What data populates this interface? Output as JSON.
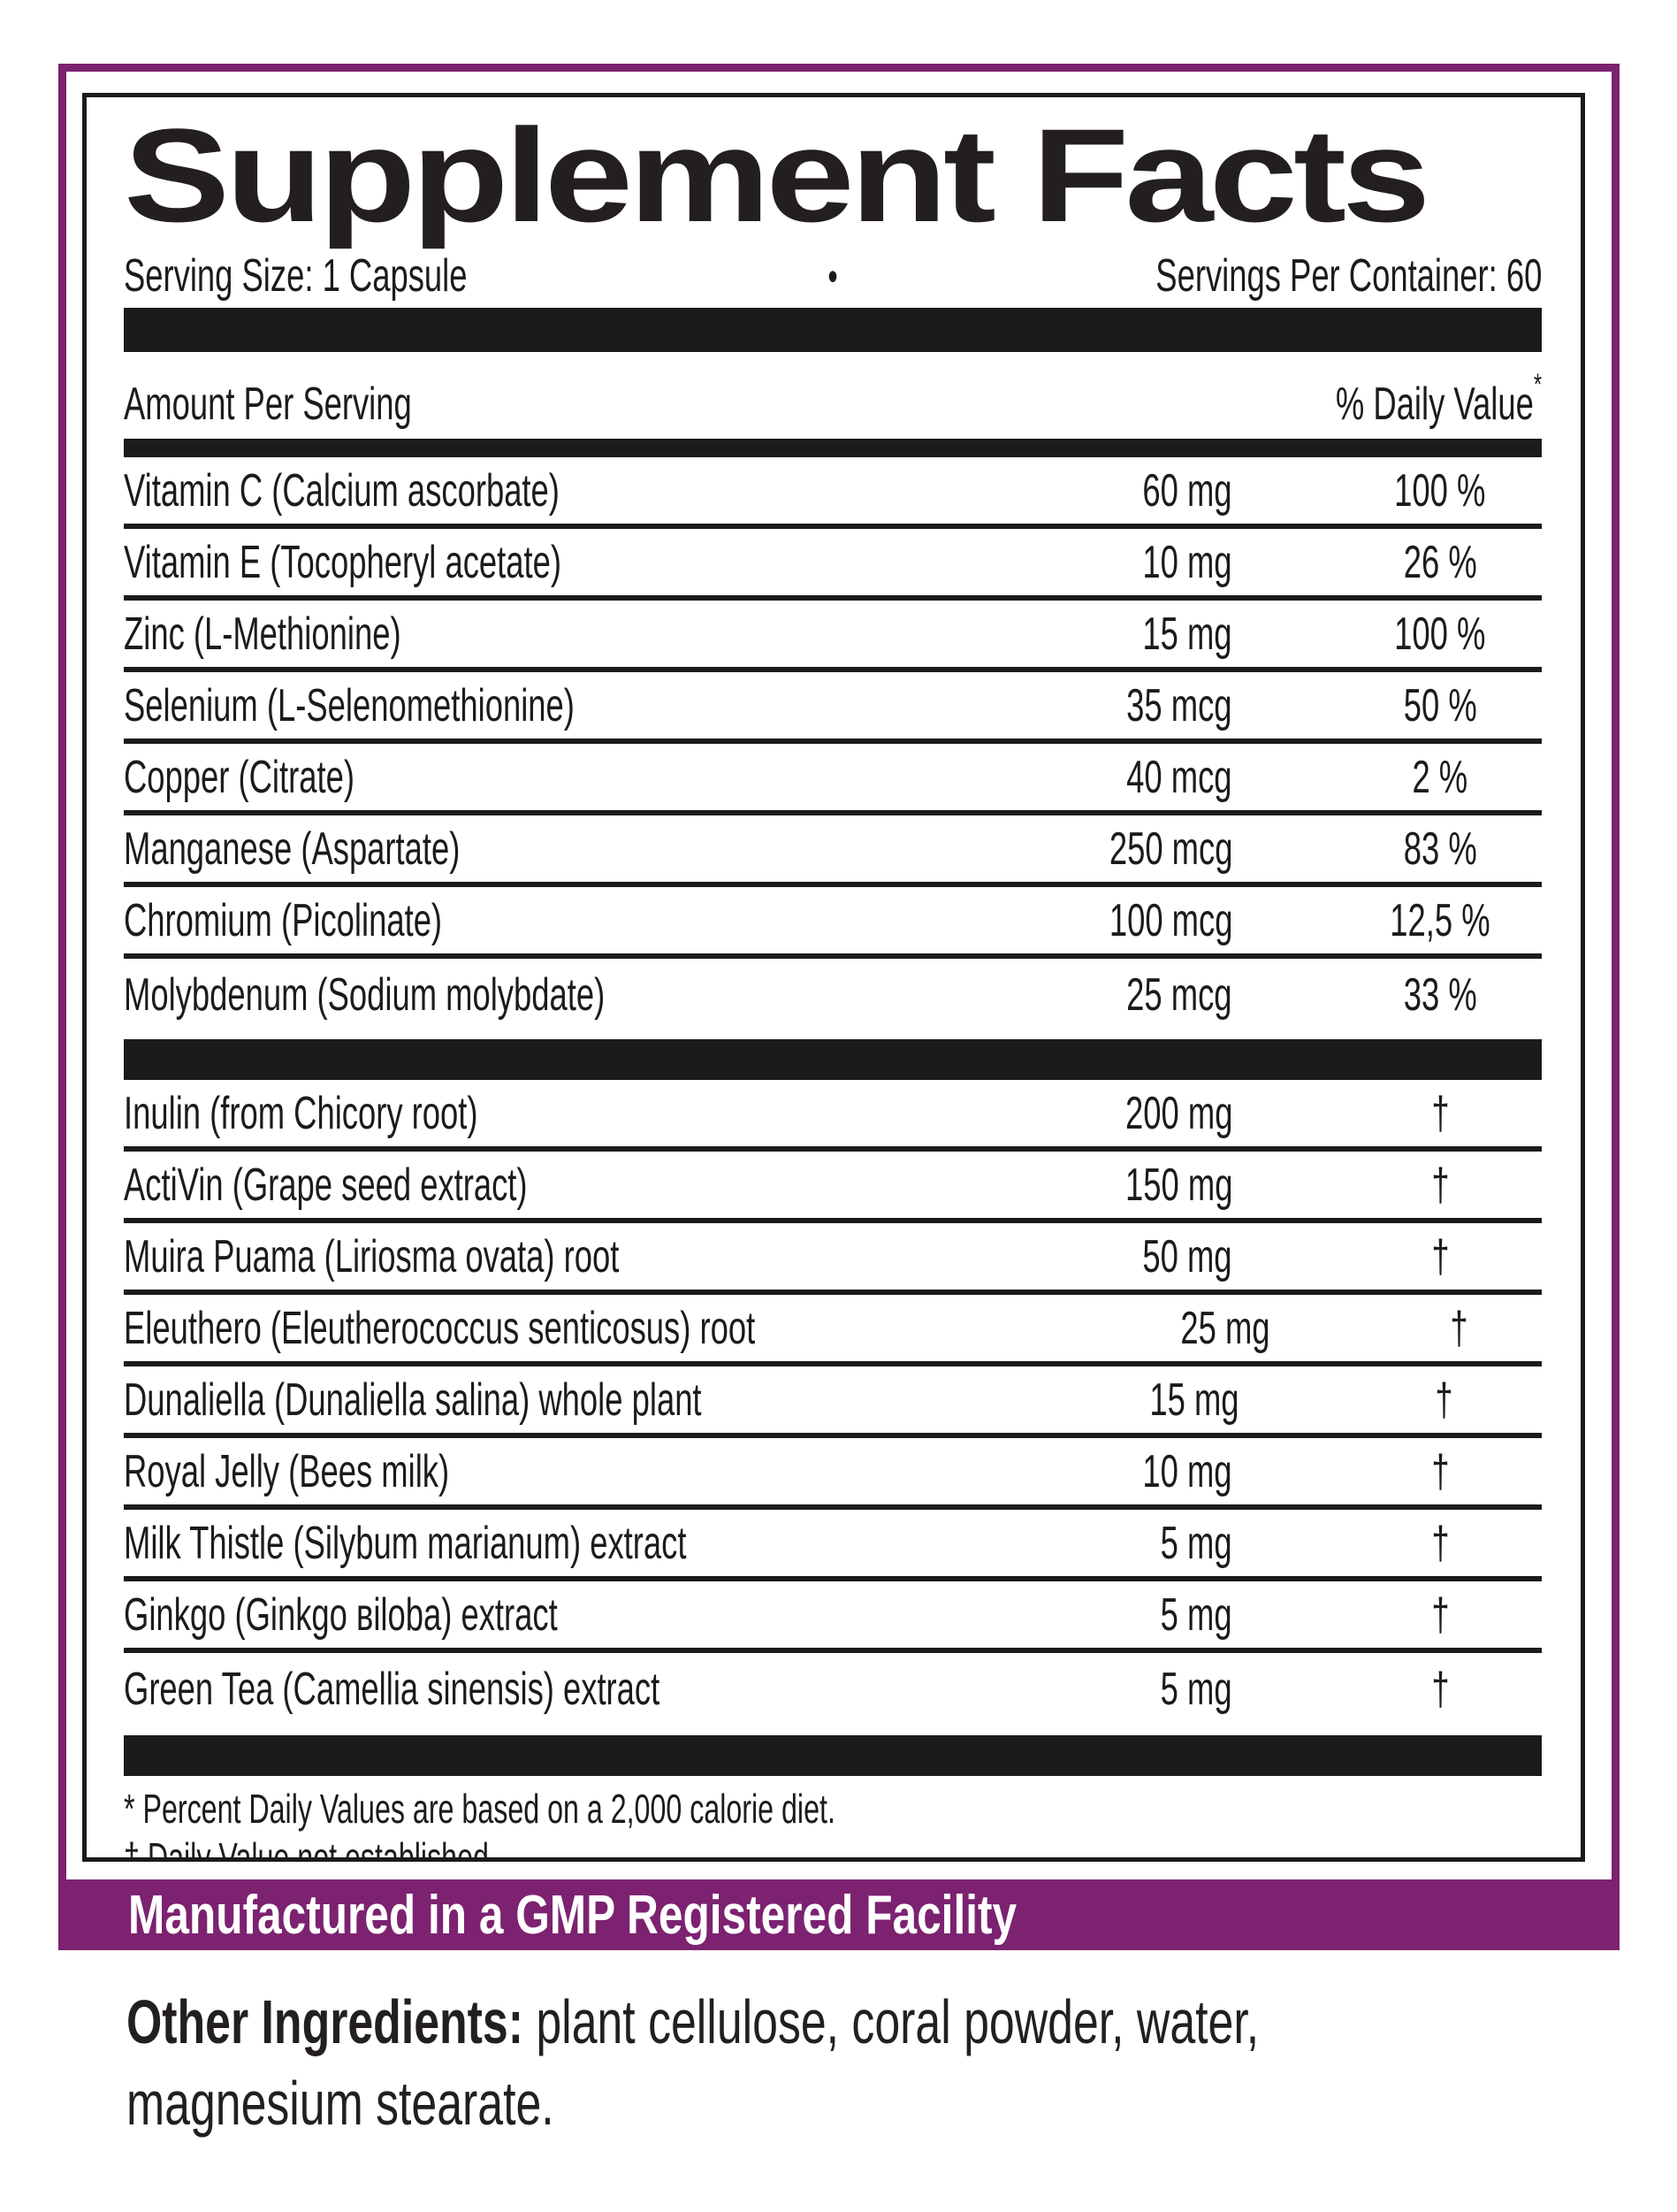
{
  "colors": {
    "accent_purple": "#7c2270",
    "text_black": "#231f20"
  },
  "label": {
    "title": "Supplement Facts",
    "serving_size": "Serving Size: 1 Capsule",
    "bullet": "•",
    "servings_per_container": "Servings Per Container: 60",
    "header": {
      "amount": "Amount Per Serving",
      "daily_value": "% Daily Value",
      "asterisk": "*"
    },
    "sections": [
      {
        "rows": [
          {
            "name": "Vitamin C (Calcium ascorbate)",
            "amount": "60 mg",
            "dv": "100 %"
          },
          {
            "name": "Vitamin E (Tocopheryl acetate)",
            "amount": "10 mg",
            "dv": "26 %"
          },
          {
            "name": "Zinc (L-Methionine)",
            "amount": "15 mg",
            "dv": "100 %"
          },
          {
            "name": "Selenium (L-Selenomethionine)",
            "amount": "35 mcg",
            "dv": "50 %"
          },
          {
            "name": "Copper (Citrate)",
            "amount": "40 mcg",
            "dv": "2 %"
          },
          {
            "name": "Manganese (Aspartate)",
            "amount": "250 mcg",
            "dv": "83 %"
          },
          {
            "name": "Chromium (Picolinate)",
            "amount": "100 mcg",
            "dv": "12,5 %"
          },
          {
            "name": "Molybdenum (Sodium molybdate)",
            "amount": "25 mcg",
            "dv": "33 %"
          }
        ]
      },
      {
        "rows": [
          {
            "name": "Inulin (from Chicory root)",
            "amount": "200 mg",
            "dv": "†"
          },
          {
            "name": "ActiVin (Grape seed extract)",
            "amount": "150 mg",
            "dv": "†"
          },
          {
            "name": "Muira Puama (Liriosma ovata) root",
            "amount": "50 mg",
            "dv": "†"
          },
          {
            "name": "Eleuthero (Eleutherococcus senticosus) root",
            "amount": "25 mg",
            "dv": "†"
          },
          {
            "name": "Dunaliella (Dunaliella salina) whole plant",
            "amount": "15 mg",
            "dv": "†"
          },
          {
            "name": "Royal Jelly (Bees milk)",
            "amount": "10 mg",
            "dv": "†"
          },
          {
            "name": "Milk Thistle (Silybum marianum) extract",
            "amount": "5 mg",
            "dv": "†"
          },
          {
            "name": "Ginkgo (Ginkgo вiloba) extract",
            "amount": "5 mg",
            "dv": "†"
          },
          {
            "name": "Green Tea (Camellia sinensis) extract",
            "amount": "5 mg",
            "dv": "†"
          }
        ]
      }
    ],
    "footnotes": {
      "asterisk_note": "* Percent Daily Values are based on a 2,000 calorie diet.",
      "dagger_note": "† Daily Value not established."
    },
    "banner": "Manufactured in a GMP Registered Facility",
    "other_ingredients": {
      "label": "Other Ingredients:",
      "line1": " plant cellulose, coral powder, water,",
      "line2": "magnesium stearate."
    }
  }
}
